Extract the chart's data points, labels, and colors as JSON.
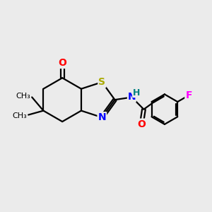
{
  "background_color": "#ebebeb",
  "bond_color": "#000000",
  "atom_colors": {
    "S": "#aaaa00",
    "N": "#0000ff",
    "O": "#ff0000",
    "H": "#008080",
    "F": "#ff00ff",
    "C": "#000000"
  },
  "font_size": 10,
  "figsize": [
    3.0,
    3.0
  ],
  "dpi": 100
}
